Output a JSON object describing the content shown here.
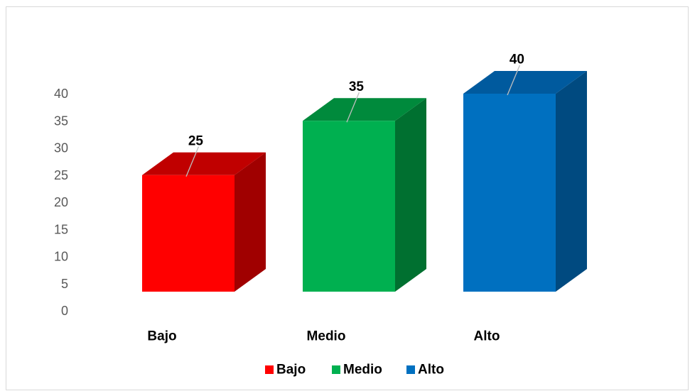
{
  "chart_data": {
    "type": "bar",
    "title": "",
    "xlabel": "",
    "ylabel": "",
    "categories": [
      "Bajo",
      "Medio",
      "Alto"
    ],
    "values": [
      25,
      35,
      40
    ],
    "colors": [
      "#ff0000",
      "#00b050",
      "#0070c0"
    ],
    "side_colors": [
      "#a00000",
      "#007030",
      "#004a80"
    ],
    "top_colors": [
      "#c00000",
      "#008a3c",
      "#005a9e"
    ],
    "ylim": [
      0,
      40
    ],
    "yticks": [
      0,
      5,
      10,
      15,
      20,
      25,
      30,
      35,
      40
    ],
    "grid": false,
    "three_d": true,
    "data_labels": true,
    "legend": {
      "position": "bottom",
      "entries": [
        "Bajo",
        "Medio",
        "Alto"
      ]
    }
  }
}
